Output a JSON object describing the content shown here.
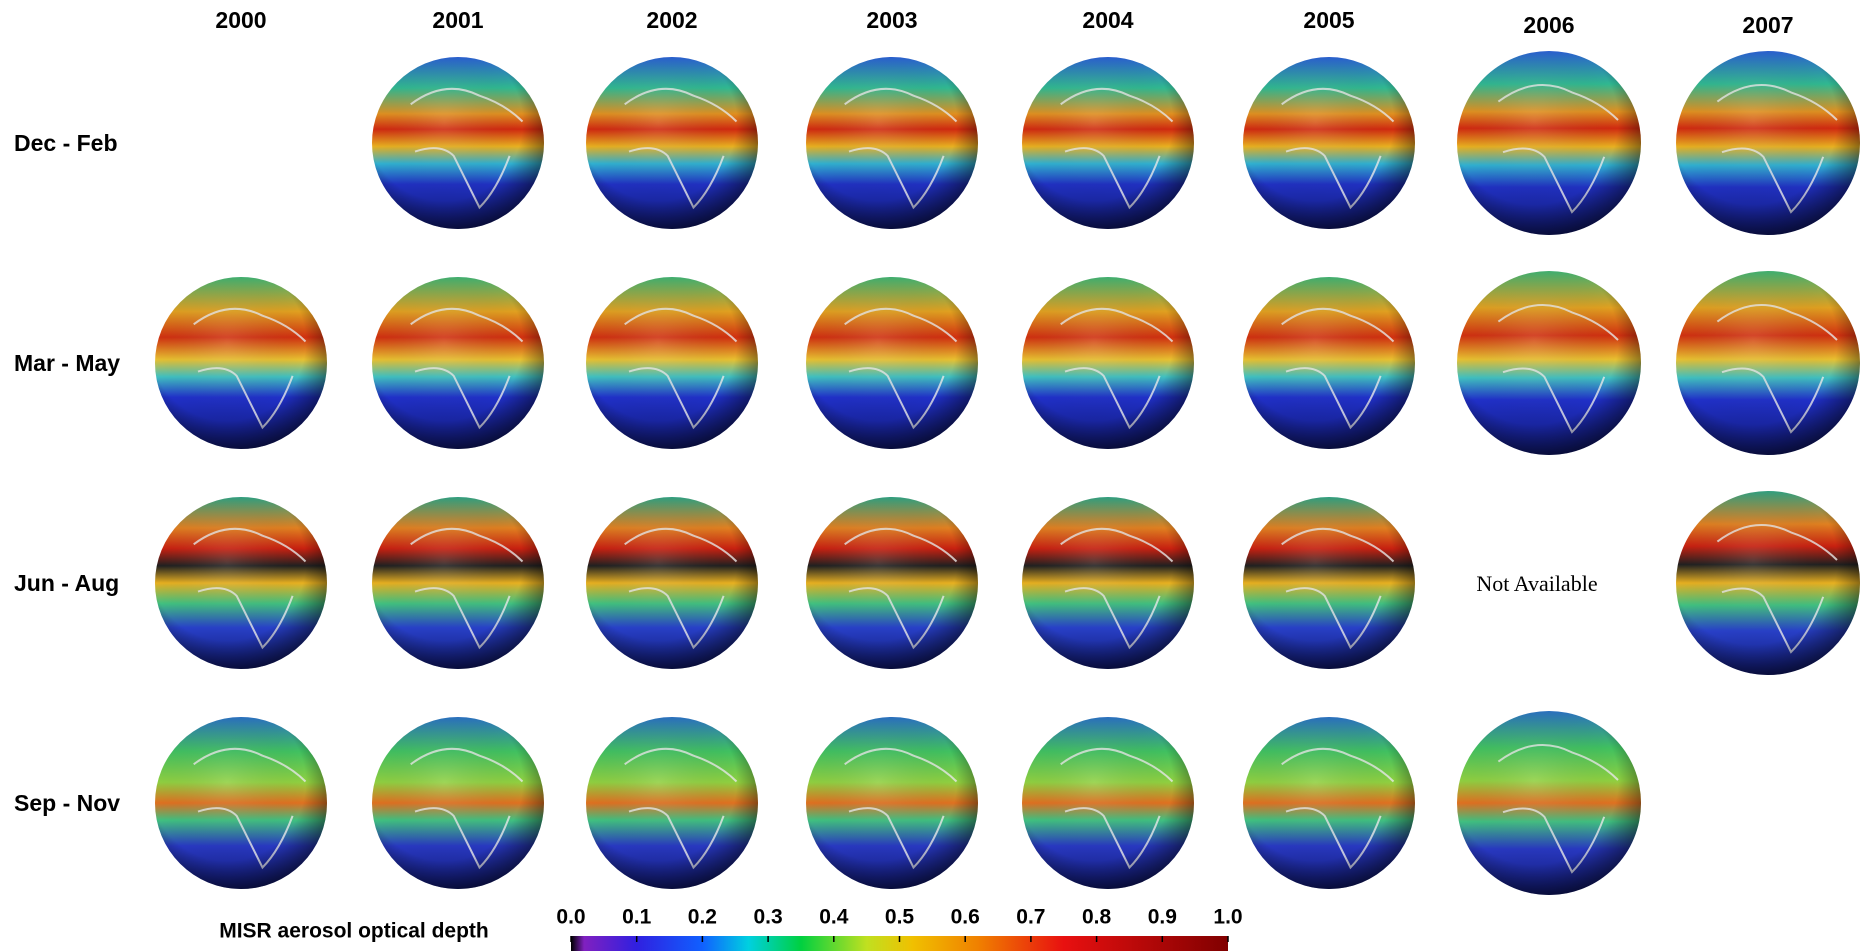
{
  "columns": [
    "2000",
    "2001",
    "2002",
    "2003",
    "2004",
    "2005",
    "2006",
    "2007"
  ],
  "rows": [
    "Dec - Feb",
    "Mar - May",
    "Jun - Aug",
    "Sep - Nov"
  ],
  "not_available": "Not Available",
  "colorbar": {
    "title": "MISR aerosol optical depth",
    "range": [
      0,
      1
    ],
    "ticks": [
      {
        "value": 0,
        "label": "0.0"
      },
      {
        "value": 0.1,
        "label": "0.1"
      },
      {
        "value": 0.2,
        "label": "0.2"
      },
      {
        "value": 0.3,
        "label": "0.3"
      },
      {
        "value": 0.4,
        "label": "0.4"
      },
      {
        "value": 0.5,
        "label": "0.5"
      },
      {
        "value": 0.6,
        "label": "0.6"
      },
      {
        "value": 0.7,
        "label": "0.7"
      },
      {
        "value": 0.8,
        "label": "0.8"
      },
      {
        "value": 0.9,
        "label": "0.9"
      },
      {
        "value": 1,
        "label": "1.0"
      }
    ]
  }
}
